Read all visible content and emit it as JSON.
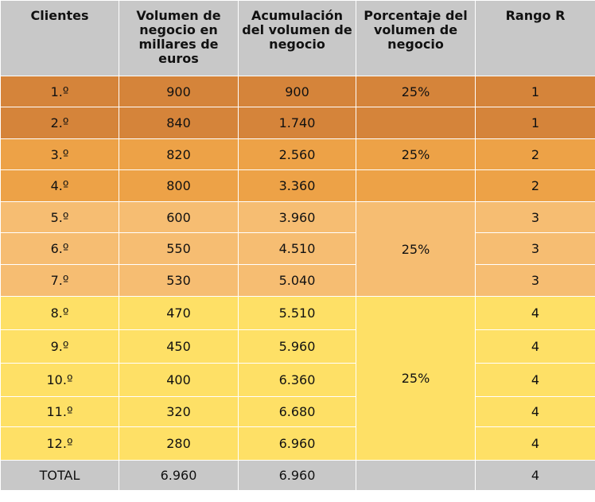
{
  "headers": [
    "Clientes",
    "Volumen de negocio en millares de euros",
    "Acumulación del volumen de negocio",
    "Porcentaje del volumen de negocio",
    "Rango R"
  ],
  "rows": [
    {
      "client": "1.º",
      "volume": "900",
      "cumulative": "900",
      "rank": "1"
    },
    {
      "client": "2.º",
      "volume": "840",
      "cumulative": "1.740",
      "rank": "1"
    },
    {
      "client": "3.º",
      "volume": "820",
      "cumulative": "2.560",
      "rank": "2"
    },
    {
      "client": "4.º",
      "volume": "800",
      "cumulative": "3.360",
      "rank": "2"
    },
    {
      "client": "5.º",
      "volume": "600",
      "cumulative": "3.960",
      "rank": "3"
    },
    {
      "client": "6.º",
      "volume": "550",
      "cumulative": "4.510",
      "rank": "3"
    },
    {
      "client": "7.º",
      "volume": "530",
      "cumulative": "5.040",
      "rank": "3"
    },
    {
      "client": "8.º",
      "volume": "470",
      "cumulative": "5.510",
      "rank": "4"
    },
    {
      "client": "9.º",
      "volume": "450",
      "cumulative": "5.960",
      "rank": "4"
    },
    {
      "client": "10.º",
      "volume": "400",
      "cumulative": "6.360",
      "rank": "4"
    },
    {
      "client": "11.º",
      "volume": "320",
      "cumulative": "6.680",
      "rank": "4"
    },
    {
      "client": "12.º",
      "volume": "280",
      "cumulative": "6.960",
      "rank": "4"
    }
  ],
  "groups": [
    {
      "percent": "25%",
      "color": "#d5843a"
    },
    {
      "percent": "25%",
      "color": "#eda247"
    },
    {
      "percent": "25%",
      "color": "#f6bd72"
    },
    {
      "percent": "25%",
      "color": "#fee066"
    }
  ],
  "total": {
    "label": "TOTAL",
    "volume": "6.960",
    "cumulative": "6.960",
    "percent": "",
    "rank": "4"
  }
}
